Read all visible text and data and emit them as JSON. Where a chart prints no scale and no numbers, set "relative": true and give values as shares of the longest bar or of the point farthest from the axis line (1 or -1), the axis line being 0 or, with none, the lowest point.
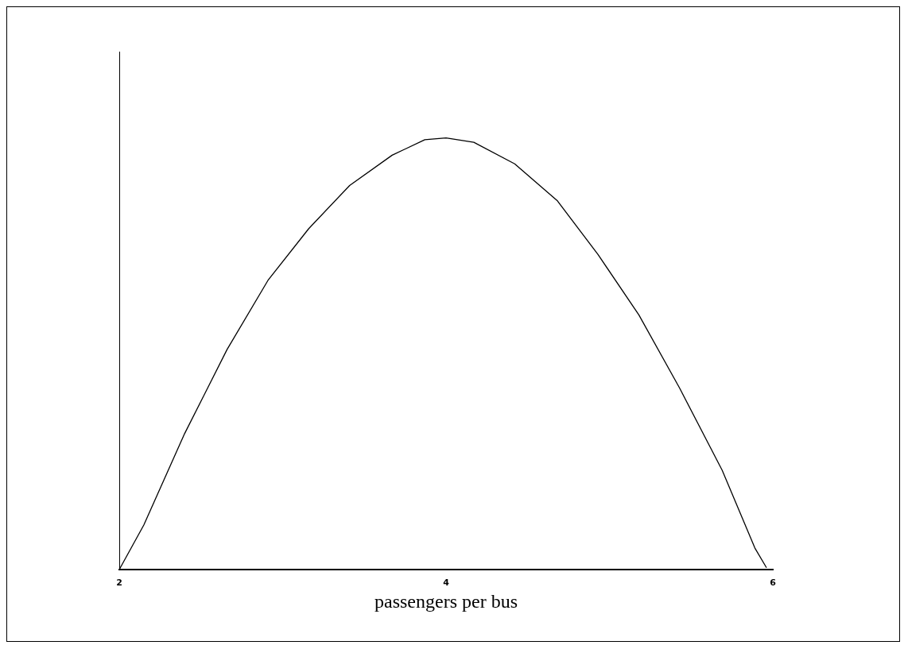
{
  "chart_data": {
    "type": "line",
    "xlabel": "passengers per bus",
    "relative": true,
    "xlim": [
      2,
      6
    ],
    "xticks": [
      2,
      4,
      6
    ],
    "grid": false,
    "legend": false,
    "marker": "none",
    "line_style": "solid",
    "series": [
      {
        "color": "#000000",
        "x": [
          2,
          2.15,
          2.4,
          2.66,
          2.91,
          3.16,
          3.41,
          3.67,
          3.87,
          4,
          4.17,
          4.42,
          4.68,
          4.93,
          5.18,
          5.43,
          5.69,
          5.89,
          5.96
        ],
        "values": [
          0,
          0.103,
          0.315,
          0.51,
          0.67,
          0.79,
          0.89,
          0.96,
          0.996,
          1,
          0.99,
          0.94,
          0.855,
          0.73,
          0.59,
          0.42,
          0.23,
          0.05,
          0.005
        ]
      }
    ]
  }
}
